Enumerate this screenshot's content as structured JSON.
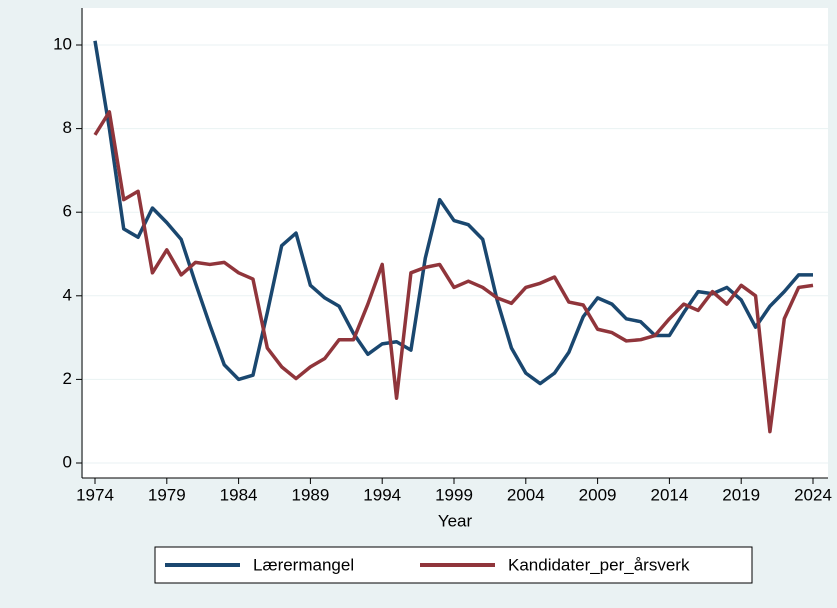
{
  "chart_data": {
    "type": "line",
    "x_label": "Year",
    "x": [
      1974,
      1975,
      1976,
      1977,
      1978,
      1979,
      1980,
      1981,
      1982,
      1983,
      1984,
      1985,
      1986,
      1987,
      1988,
      1989,
      1990,
      1991,
      1992,
      1993,
      1994,
      1995,
      1996,
      1997,
      1998,
      1999,
      2000,
      2001,
      2002,
      2003,
      2004,
      2005,
      2006,
      2007,
      2008,
      2009,
      2010,
      2011,
      2012,
      2013,
      2014,
      2015,
      2016,
      2017,
      2018,
      2019,
      2020,
      2021,
      2022,
      2023,
      2024
    ],
    "series": [
      {
        "name": "Lærermangel",
        "color": "#1a476f",
        "values": [
          10.1,
          8.0,
          5.6,
          5.4,
          6.1,
          5.75,
          5.35,
          4.3,
          3.3,
          2.35,
          2.0,
          2.1,
          3.6,
          5.2,
          5.5,
          4.25,
          3.95,
          3.75,
          3.1,
          2.6,
          2.85,
          2.9,
          2.7,
          4.9,
          6.3,
          5.8,
          5.7,
          5.35,
          3.9,
          2.75,
          2.15,
          1.9,
          2.15,
          2.65,
          3.5,
          3.95,
          3.8,
          3.45,
          3.38,
          3.05,
          3.05,
          3.6,
          4.1,
          4.05,
          4.2,
          3.9,
          3.25,
          3.75,
          4.1,
          4.5,
          4.5
        ]
      },
      {
        "name": "Kandidater_per_årsverk",
        "color": "#90353b",
        "values": [
          7.85,
          8.4,
          6.3,
          6.5,
          4.55,
          5.1,
          4.5,
          4.8,
          4.75,
          4.8,
          4.55,
          4.4,
          2.75,
          2.3,
          2.02,
          2.3,
          2.5,
          2.95,
          2.95,
          3.8,
          4.75,
          1.55,
          4.55,
          4.68,
          4.75,
          4.2,
          4.35,
          4.2,
          3.95,
          3.82,
          4.2,
          4.3,
          4.45,
          3.85,
          3.78,
          3.2,
          3.12,
          2.92,
          2.95,
          3.05,
          3.45,
          3.8,
          3.65,
          4.1,
          3.8,
          4.25,
          4.0,
          0.75,
          3.45,
          4.2,
          4.25
        ]
      }
    ],
    "xlim": [
      1974,
      2024
    ],
    "xticks": [
      1974,
      1979,
      1984,
      1989,
      1994,
      1999,
      2004,
      2009,
      2014,
      2019,
      2024
    ],
    "ylim": [
      0,
      10
    ],
    "yticks": [
      0,
      2,
      4,
      6,
      8,
      10
    ],
    "grid": true,
    "legend": "bottom"
  }
}
